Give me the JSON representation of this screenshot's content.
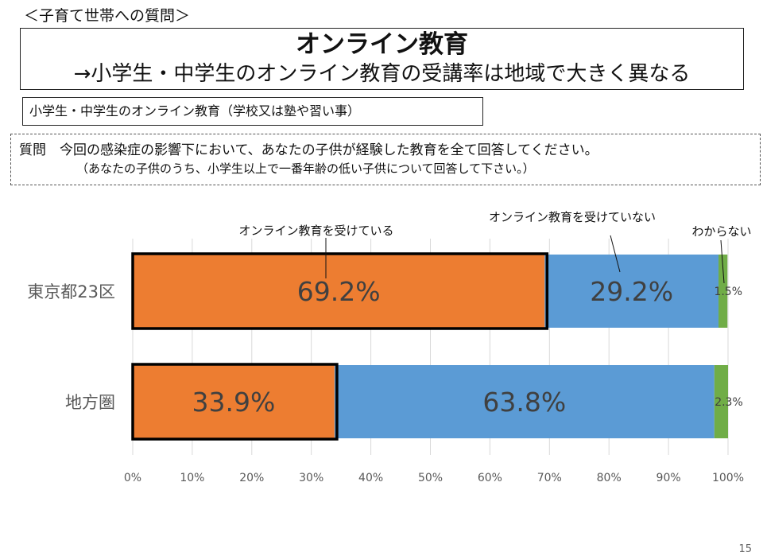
{
  "header": {
    "section_label": "＜子育て世帯への質問＞",
    "title": "オンライン教育",
    "subtitle": "→小学生・中学生のオンライン教育の受講率は地域で大きく異なる",
    "box_label": "小学生・中学生のオンライン教育（学校又は塾や習い事）",
    "question_line1": "質問　今回の感染症の影響下において、あなたの子供が経験した教育を全て回答してください。",
    "question_line2": "（あなたの子供のうち、小学生以上で一番年齢の低い子供について回答して下さい。）"
  },
  "page_number": "15",
  "chart_data": {
    "type": "bar",
    "orientation": "horizontal",
    "stacked": true,
    "categories": [
      "東京都23区",
      "地方圏"
    ],
    "series": [
      {
        "name": "オンライン教育を受けている",
        "values": [
          69.2,
          33.9
        ],
        "labels": [
          "69.2%",
          "33.9%"
        ],
        "color": "#ED7D31"
      },
      {
        "name": "オンライン教育を受けていない",
        "values": [
          29.2,
          63.8
        ],
        "labels": [
          "29.2%",
          "63.8%"
        ],
        "color": "#5B9BD5"
      },
      {
        "name": "わからない",
        "values": [
          1.5,
          2.3
        ],
        "labels": [
          "1.5%",
          "2.3%"
        ],
        "color": "#70AD47"
      }
    ],
    "xlim": [
      0,
      100
    ],
    "x_ticks": [
      "0%",
      "10%",
      "20%",
      "30%",
      "40%",
      "50%",
      "60%",
      "70%",
      "80%",
      "90%",
      "100%"
    ],
    "grid": true,
    "legend": "callout labels above bars"
  }
}
